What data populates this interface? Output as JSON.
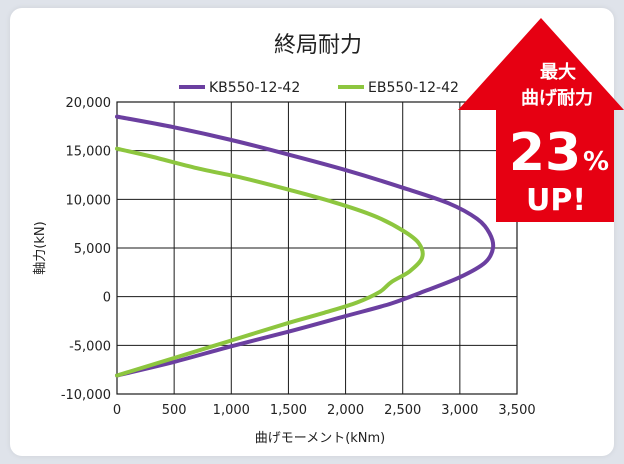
{
  "colors": {
    "page_bg": "#dfe3ea",
    "card_bg": "#ffffff",
    "series_kb": "#6b3fa0",
    "series_eb": "#8dc63f",
    "badge": "#e60012",
    "grid": "#1a1a1a",
    "text": "#222222"
  },
  "badge": {
    "line1": "最大",
    "line2": "曲げ耐力",
    "number": "23",
    "percent": "%",
    "up": "UP!"
  },
  "chart_data": {
    "type": "line",
    "title": "終局耐力",
    "xlabel": "曲げモーメント(kNm)",
    "ylabel": "軸力(kN)",
    "xlim": [
      0,
      3500
    ],
    "ylim": [
      -10000,
      20000
    ],
    "x_ticks": [
      "0",
      "500",
      "1,000",
      "1,500",
      "2,000",
      "2,500",
      "3,000",
      "3,500"
    ],
    "x_tick_values": [
      0,
      500,
      1000,
      1500,
      2000,
      2500,
      3000,
      3500
    ],
    "y_ticks": [
      "-10,000",
      "-5,000",
      "0",
      "5,000",
      "10,000",
      "15,000",
      "20,000"
    ],
    "y_tick_values": [
      -10000,
      -5000,
      0,
      5000,
      10000,
      15000,
      20000
    ],
    "grid": true,
    "legend_position": "top",
    "series": [
      {
        "name": "KB550-12-42",
        "color": "#6b3fa0",
        "points": [
          [
            0,
            18500
          ],
          [
            500,
            17400
          ],
          [
            1000,
            16100
          ],
          [
            1500,
            14600
          ],
          [
            2000,
            13000
          ],
          [
            2500,
            11200
          ],
          [
            2900,
            9600
          ],
          [
            3150,
            8000
          ],
          [
            3260,
            6500
          ],
          [
            3290,
            5000
          ],
          [
            3220,
            3500
          ],
          [
            3000,
            2000
          ],
          [
            2700,
            600
          ],
          [
            2400,
            -700
          ],
          [
            2000,
            -2000
          ],
          [
            1500,
            -3600
          ],
          [
            1000,
            -5100
          ],
          [
            500,
            -6700
          ],
          [
            0,
            -8100
          ]
        ]
      },
      {
        "name": "EB550-12-42",
        "color": "#8dc63f",
        "points": [
          [
            0,
            15200
          ],
          [
            300,
            14400
          ],
          [
            700,
            13200
          ],
          [
            1100,
            12200
          ],
          [
            1500,
            11000
          ],
          [
            1900,
            9700
          ],
          [
            2250,
            8300
          ],
          [
            2500,
            6800
          ],
          [
            2640,
            5500
          ],
          [
            2670,
            4000
          ],
          [
            2560,
            2600
          ],
          [
            2400,
            1500
          ],
          [
            2300,
            500
          ],
          [
            2100,
            -600
          ],
          [
            1800,
            -1700
          ],
          [
            1500,
            -2700
          ],
          [
            1000,
            -4500
          ],
          [
            500,
            -6300
          ],
          [
            0,
            -8100
          ]
        ]
      }
    ]
  }
}
